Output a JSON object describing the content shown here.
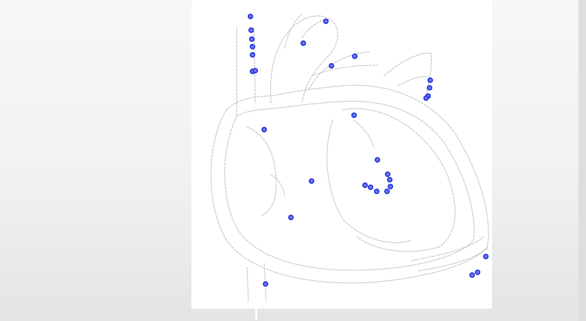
{
  "diagram": {
    "subject": "heart-blood-flow-sketch",
    "dot_color": "#1f2fd6",
    "dot_fill": "#6b77f0",
    "line_color": "#bdbdbd",
    "panel_color": "#ffffff",
    "dot_groups": [
      {
        "name": "superior-vena-cava-path",
        "count": 7
      },
      {
        "name": "aorta-arch-path",
        "count": 2
      },
      {
        "name": "pulmonary-artery-path",
        "count": 2
      },
      {
        "name": "pulmonary-vein-path",
        "count": 4
      },
      {
        "name": "left-atrium-path",
        "count": 1
      },
      {
        "name": "left-ventricle-path",
        "count": 8
      },
      {
        "name": "right-atrium-path",
        "count": 1
      },
      {
        "name": "right-ventricle-path",
        "count": 2
      },
      {
        "name": "inferior-vena-cava-path",
        "count": 1
      },
      {
        "name": "apex-path",
        "count": 3
      }
    ]
  }
}
